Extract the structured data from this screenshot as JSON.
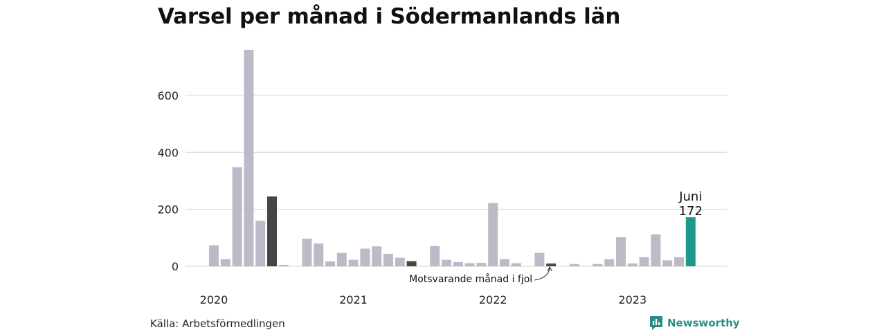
{
  "title": "Varsel per månad i Södermanlands län",
  "source": "Källa: Arbetsförmedlingen",
  "brand": {
    "name": "Newsworthy",
    "icon": "newsworthy-logo-icon"
  },
  "colors": {
    "bar": "#bdbac8",
    "bar_same_month": "#454545",
    "bar_current": "#1b9a8b",
    "grid": "#dcdcdc",
    "brand": "#2a8e86"
  },
  "chart_data": {
    "type": "bar",
    "title": "Varsel per månad i Södermanlands län",
    "xlabel": "",
    "ylabel": "",
    "ylim": [
      0,
      760
    ],
    "yticks": [
      0,
      200,
      400,
      600
    ],
    "grid": true,
    "year_labels": [
      "2020",
      "2021",
      "2022",
      "2023"
    ],
    "categories": [
      "2020-01",
      "2020-02",
      "2020-03",
      "2020-04",
      "2020-05",
      "2020-06",
      "2020-07",
      "2020-08",
      "2020-09",
      "2020-10",
      "2020-11",
      "2020-12",
      "2021-01",
      "2021-02",
      "2021-03",
      "2021-04",
      "2021-05",
      "2021-06",
      "2021-07",
      "2021-08",
      "2021-09",
      "2021-10",
      "2021-11",
      "2021-12",
      "2022-01",
      "2022-02",
      "2022-03",
      "2022-04",
      "2022-05",
      "2022-06",
      "2022-07",
      "2022-08",
      "2022-09",
      "2022-10",
      "2022-11",
      "2022-12",
      "2023-01",
      "2023-02",
      "2023-03",
      "2023-04",
      "2023-05",
      "2023-06"
    ],
    "values": [
      74,
      25,
      348,
      760,
      160,
      245,
      5,
      0,
      97,
      80,
      17,
      47,
      23,
      62,
      70,
      44,
      30,
      18,
      0,
      71,
      23,
      15,
      11,
      12,
      222,
      25,
      11,
      0,
      47,
      5,
      0,
      8,
      0,
      8,
      25,
      102,
      10,
      32,
      112,
      21,
      32,
      172
    ],
    "same_month_previous_years": [
      "2020-06",
      "2021-06",
      "2022-06"
    ],
    "current": "2023-06",
    "annotations": [
      {
        "text": "Motsvarande månad i fjol",
        "target": "2022-06"
      },
      {
        "text": "Juni",
        "target": "2023-06"
      },
      {
        "text": "172",
        "target": "2023-06"
      }
    ]
  }
}
